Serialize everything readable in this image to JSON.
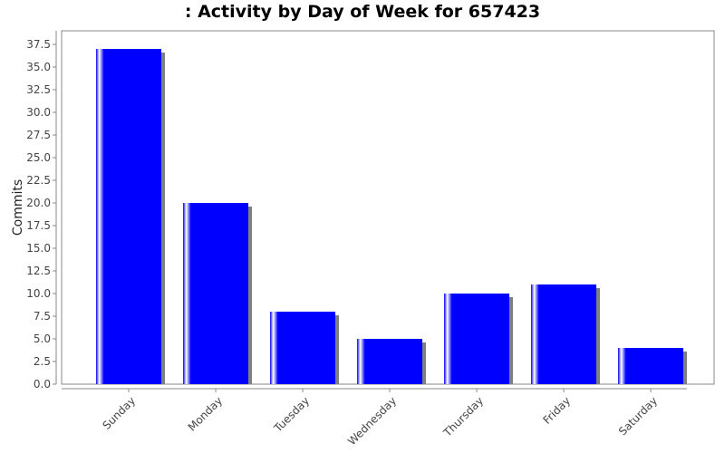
{
  "chart_data": {
    "type": "bar",
    "title": ": Activity by Day of Week for 657423",
    "xlabel": "",
    "ylabel": "Commits",
    "categories": [
      "Sunday",
      "Monday",
      "Tuesday",
      "Wednesday",
      "Thursday",
      "Friday",
      "Saturday"
    ],
    "values": [
      37,
      20,
      8,
      5,
      10,
      11,
      4
    ],
    "ylim": [
      0,
      39
    ],
    "yticks": [
      "0.0",
      "2.5",
      "5.0",
      "7.5",
      "10.0",
      "12.5",
      "15.0",
      "17.5",
      "20.0",
      "22.5",
      "25.0",
      "27.5",
      "30.0",
      "32.5",
      "35.0",
      "37.5"
    ],
    "grid": false,
    "legend": "none",
    "colors": {
      "bar": "#0000ff",
      "highlight": "#ffffff",
      "shadow": "#808080",
      "axis": "#888888"
    }
  }
}
